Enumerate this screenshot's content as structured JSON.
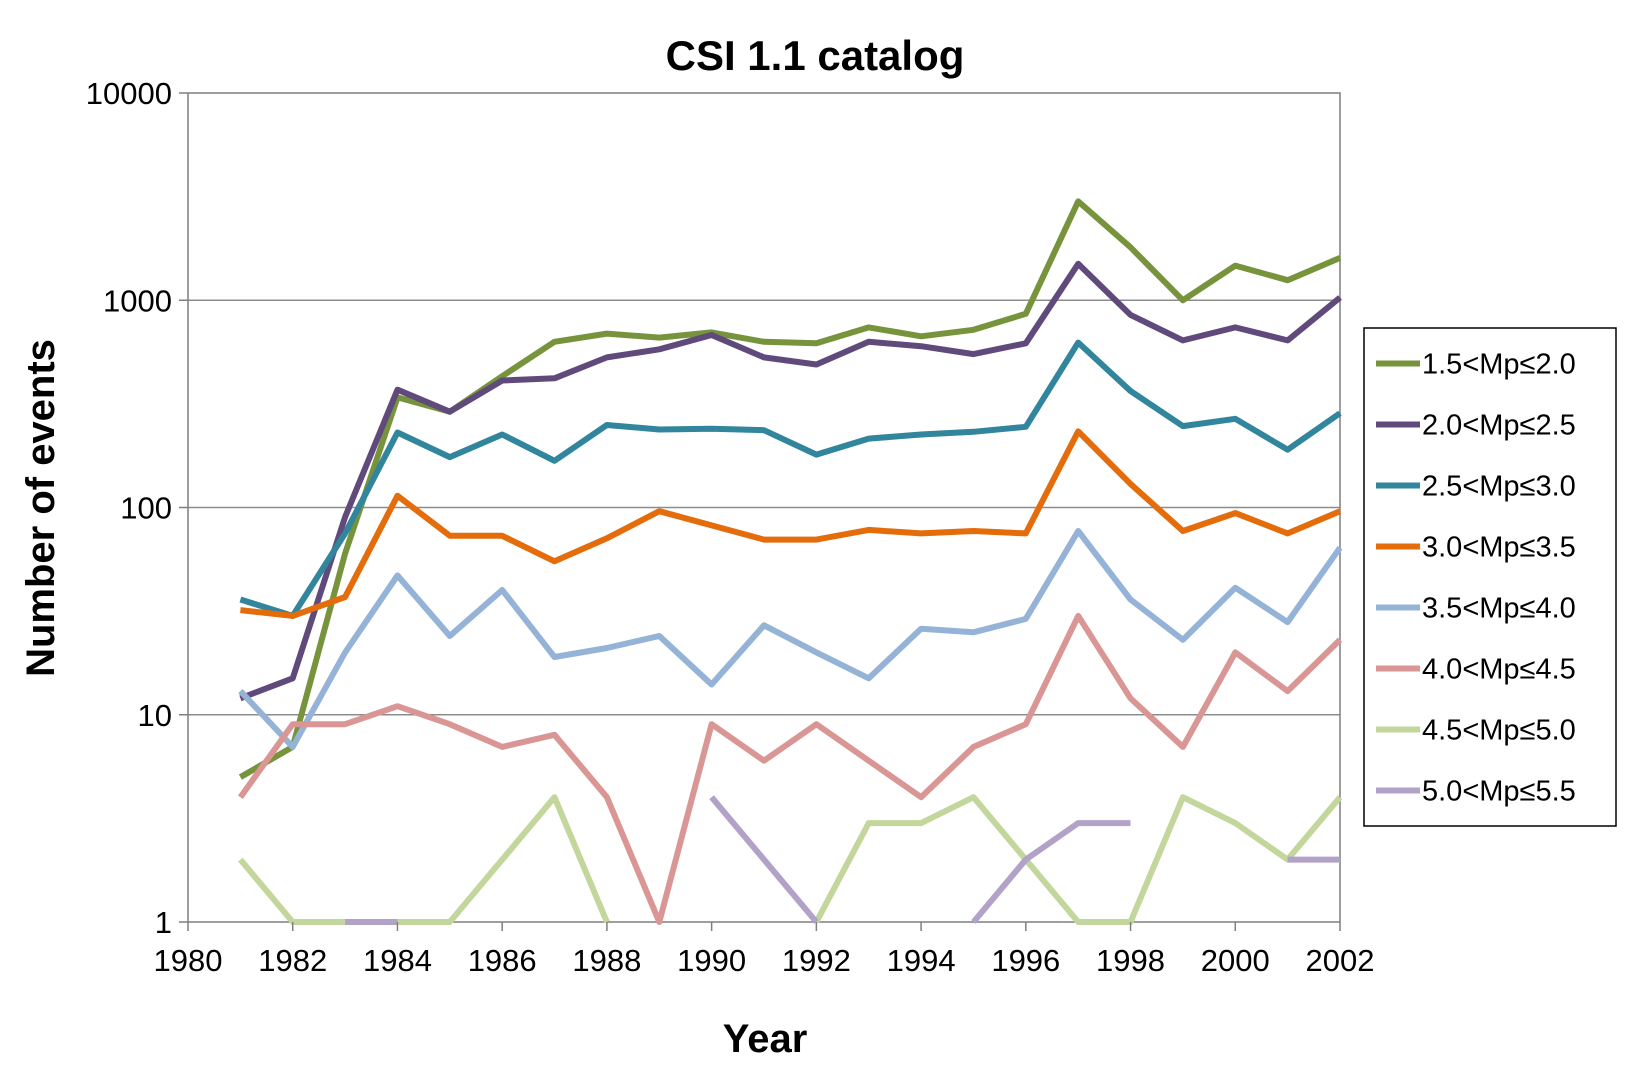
{
  "chart_data": {
    "type": "line",
    "title": "CSI 1.1 catalog",
    "xlabel": "Year",
    "ylabel": "Number of events",
    "xlim": [
      1980,
      2002
    ],
    "x_ticks": [
      1980,
      1982,
      1984,
      1986,
      1988,
      1990,
      1992,
      1994,
      1996,
      1998,
      2000,
      2002
    ],
    "x_tick_labels": [
      "1980",
      "1982",
      "1984",
      "1986",
      "1988",
      "1990",
      "1992",
      "1994",
      "1996",
      "1998",
      "2000",
      "2002"
    ],
    "y_scale": "log",
    "ylim": [
      1,
      10000
    ],
    "y_ticks": [
      1,
      10,
      100,
      1000,
      10000
    ],
    "y_tick_labels": [
      "1",
      "10",
      "100",
      "1000",
      "10000"
    ],
    "grid": "horizontal major gridlines",
    "legend_position": "right",
    "x": [
      1981,
      1982,
      1983,
      1984,
      1985,
      1986,
      1987,
      1988,
      1989,
      1990,
      1991,
      1992,
      1993,
      1994,
      1995,
      1996,
      1997,
      1998,
      1999,
      2000,
      2001,
      2002
    ],
    "series": [
      {
        "name": "1.5<Mp≤2.0",
        "color": "#77933C",
        "values": [
          5,
          7,
          60,
          340,
          290,
          430,
          630,
          690,
          660,
          700,
          630,
          620,
          740,
          670,
          720,
          860,
          3000,
          1800,
          1000,
          1470,
          1250,
          1600
        ]
      },
      {
        "name": "2.0<Mp≤2.5",
        "color": "#604A7B",
        "values": [
          12,
          15,
          90,
          370,
          290,
          410,
          420,
          530,
          580,
          680,
          530,
          490,
          630,
          600,
          550,
          620,
          1500,
          850,
          640,
          740,
          640,
          1030
        ]
      },
      {
        "name": "2.5<Mp≤3.0",
        "color": "#31859C",
        "values": [
          36,
          30,
          75,
          230,
          175,
          225,
          168,
          250,
          238,
          240,
          236,
          180,
          215,
          225,
          232,
          245,
          625,
          365,
          247,
          268,
          190,
          285
        ]
      },
      {
        "name": "3.0<Mp≤3.5",
        "color": "#E46C0A",
        "values": [
          32,
          30,
          37,
          114,
          73,
          73,
          55,
          71,
          96,
          82,
          70,
          70,
          78,
          75,
          77,
          75,
          233,
          130,
          77,
          94,
          75,
          96
        ]
      },
      {
        "name": "3.5<Mp≤4.0",
        "color": "#95B3D7",
        "values": [
          13,
          7,
          20,
          47,
          24,
          40,
          19,
          21,
          24,
          14,
          27,
          20,
          15,
          26,
          25,
          29,
          77,
          36,
          23,
          41,
          28,
          64
        ]
      },
      {
        "name": "4.0<Mp≤4.5",
        "color": "#D99694",
        "values": [
          4,
          9,
          9,
          11,
          9,
          7,
          8,
          4,
          1,
          9,
          6,
          9,
          6,
          4,
          7,
          9,
          30,
          12,
          7,
          20,
          13,
          23
        ]
      },
      {
        "name": "4.5<Mp≤5.0",
        "color": "#C3D69B",
        "values": [
          2,
          1,
          1,
          1,
          1,
          2,
          4,
          1,
          null,
          null,
          null,
          1,
          3,
          3,
          4,
          2,
          1,
          1,
          4,
          3,
          2,
          4
        ]
      },
      {
        "name": "5.0<Mp≤5.5",
        "color": "#B3A2C7",
        "values": [
          null,
          null,
          1,
          1,
          null,
          null,
          null,
          null,
          null,
          4,
          2,
          1,
          null,
          null,
          1,
          2,
          3,
          3,
          null,
          null,
          2,
          2
        ]
      }
    ]
  }
}
